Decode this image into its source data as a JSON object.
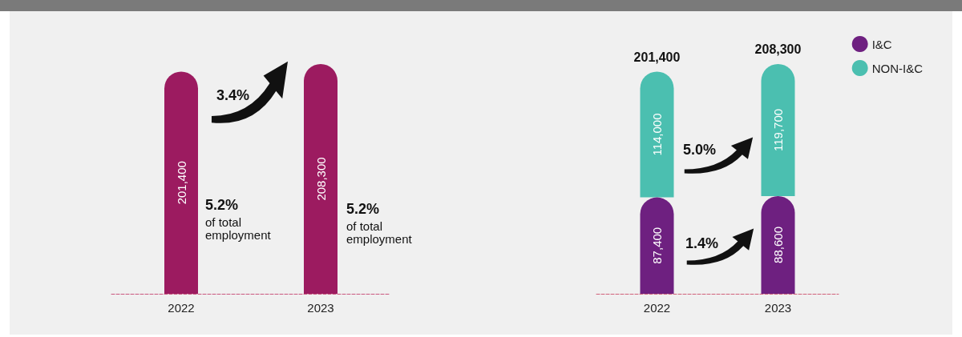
{
  "chart_data": [
    {
      "type": "bar",
      "categories": [
        "2022",
        "2023"
      ],
      "values": [
        201400,
        208300
      ],
      "value_labels": [
        "201,400",
        "208,300"
      ],
      "color": "#9c1b60",
      "annotations": [
        "3.4%",
        "5.2%\nof total\nemployment",
        "5.2%\nof total\nemployment"
      ]
    },
    {
      "type": "bar",
      "stacked": true,
      "categories": [
        "2022",
        "2023"
      ],
      "series": [
        {
          "name": "I&C",
          "color": "#6e2080",
          "values": [
            87400,
            88600
          ],
          "value_labels": [
            "87,400",
            "88,600"
          ]
        },
        {
          "name": "NON-I&C",
          "color": "#4bbfb0",
          "values": [
            114000,
            119700
          ],
          "value_labels": [
            "114,000",
            "119,700"
          ]
        }
      ],
      "totals": [
        "201,400",
        "208,300"
      ],
      "legend": "top right",
      "annotations": [
        "5.0%",
        "1.4%"
      ]
    }
  ]
}
